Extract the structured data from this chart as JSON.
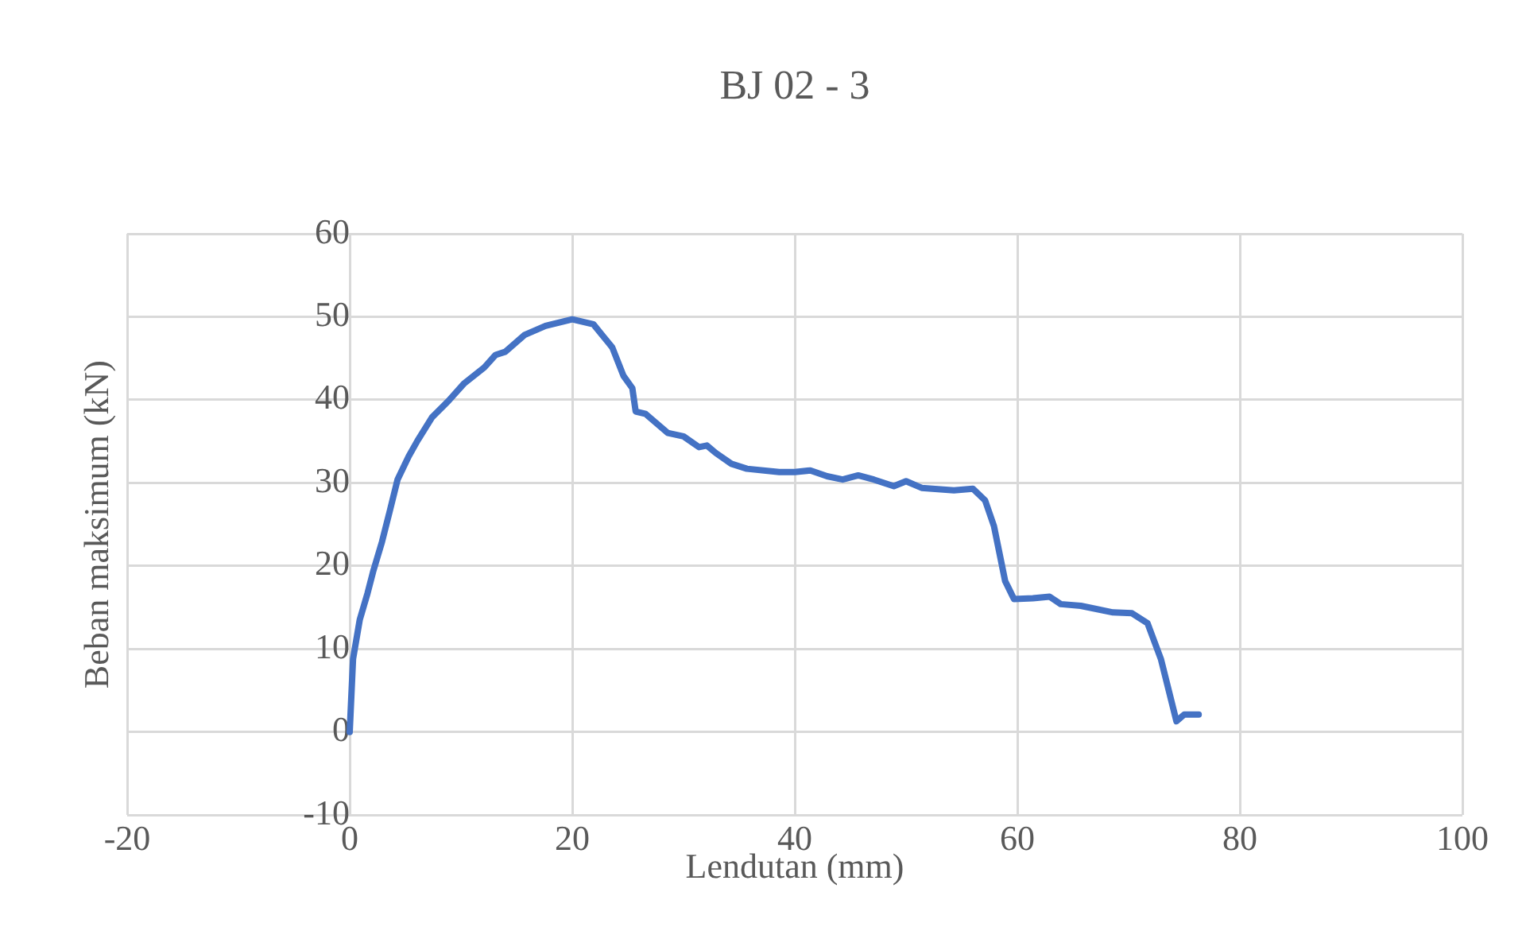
{
  "chart_data": {
    "type": "line",
    "title": "BJ 02 - 3",
    "xlabel": "Lendutan (mm)",
    "ylabel": "Beban maksimum (kN)",
    "xlim": [
      -20,
      100
    ],
    "xticks": [
      -20,
      0,
      20,
      40,
      60,
      80,
      100
    ],
    "ylim": [
      -10,
      60
    ],
    "yticks": [
      -10,
      0,
      10,
      20,
      30,
      40,
      50,
      60
    ],
    "grid": true,
    "marker": "none",
    "line_style": "solid",
    "series": [
      {
        "color": "#4472c4",
        "x": [
          0,
          0.3,
          0.9,
          1.6,
          2.1,
          2.9,
          3.6,
          4.3,
          5.3,
          6.1,
          7.4,
          8.9,
          10.3,
          12.1,
          13.1,
          14,
          15.7,
          17.6,
          20,
          21.9,
          23.6,
          24.6,
          25.4,
          25.7,
          26.6,
          28.6,
          30,
          31.4,
          32.1,
          32.9,
          34.3,
          35.7,
          38.6,
          40,
          41.4,
          42.9,
          44.3,
          45.7,
          47.1,
          48.9,
          50,
          51.4,
          54.3,
          56,
          57.1,
          57.9,
          58.9,
          59.7,
          61.4,
          62.9,
          63.9,
          65.7,
          68.6,
          70.3,
          71.7,
          72.9,
          74.3,
          75,
          76.3
        ],
        "values": [
          0,
          8.8,
          13.5,
          16.7,
          19.3,
          22.9,
          26.6,
          30.4,
          33.2,
          35.1,
          37.9,
          39.9,
          42,
          43.9,
          45.4,
          45.8,
          47.8,
          48.9,
          49.7,
          49.1,
          46.3,
          42.9,
          41.4,
          38.6,
          38.3,
          36,
          35.6,
          34.3,
          34.5,
          33.6,
          32.3,
          31.7,
          31.3,
          31.3,
          31.5,
          30.8,
          30.4,
          30.9,
          30.4,
          29.6,
          30.2,
          29.4,
          29.1,
          29.3,
          27.9,
          24.8,
          18.2,
          16,
          16.1,
          16.3,
          15.4,
          15.2,
          14.4,
          14.3,
          13.1,
          8.8,
          1.3,
          2.1,
          2.1
        ]
      }
    ]
  }
}
